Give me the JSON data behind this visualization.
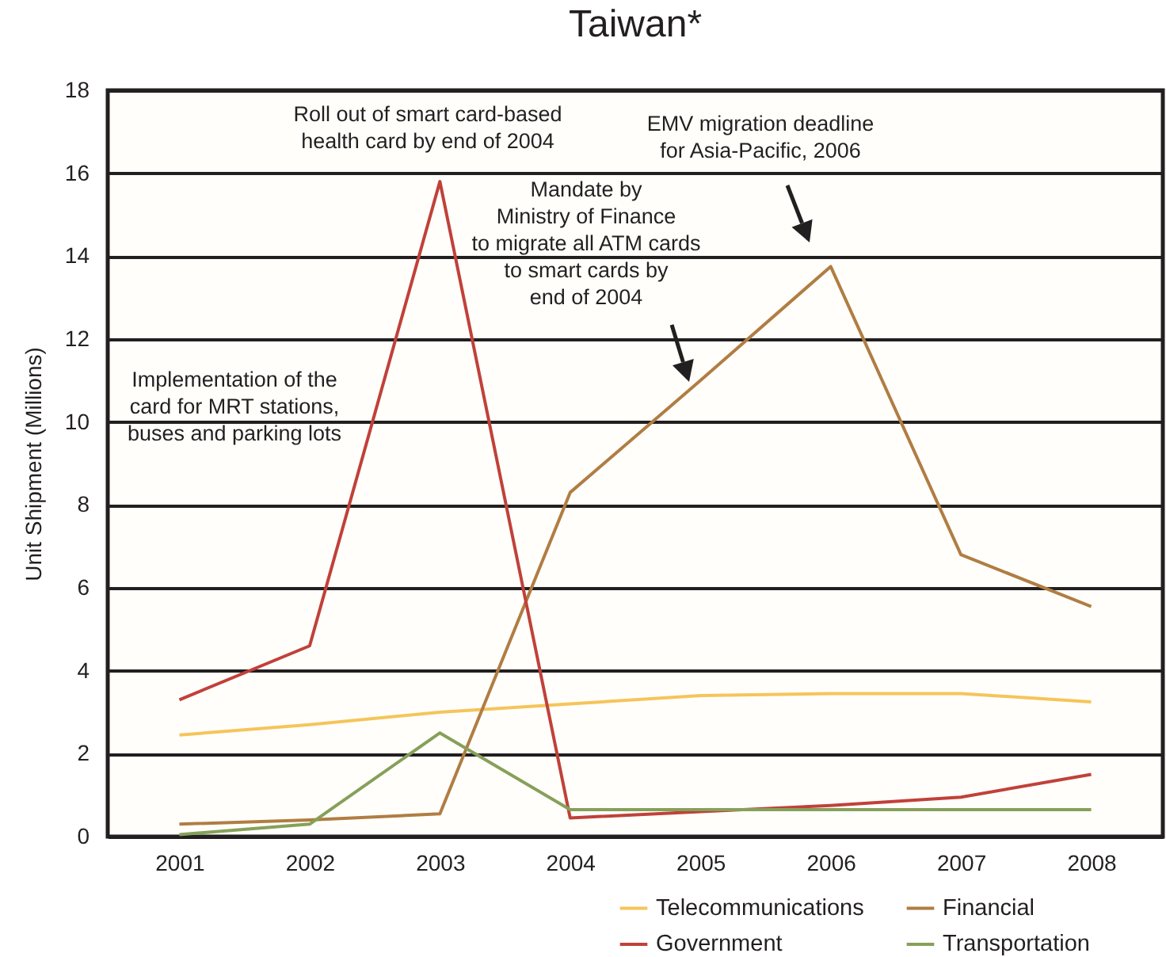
{
  "chart_data": {
    "type": "line",
    "title": "Taiwan*",
    "ylabel": "Unit Shipment (Millions)",
    "categories": [
      "2001",
      "2002",
      "2003",
      "2004",
      "2005",
      "2006",
      "2007",
      "2008"
    ],
    "series": [
      {
        "name": "Telecommunications",
        "color": "#f5c55a",
        "values": [
          2.45,
          2.7,
          3.0,
          3.2,
          3.4,
          3.45,
          3.45,
          3.25
        ]
      },
      {
        "name": "Financial",
        "color": "#b07d43",
        "values": [
          0.3,
          0.4,
          0.55,
          8.3,
          11.0,
          13.75,
          6.8,
          5.55
        ]
      },
      {
        "name": "Government",
        "color": "#c0413a",
        "values": [
          3.3,
          4.6,
          15.8,
          0.45,
          0.6,
          0.75,
          0.95,
          1.5
        ]
      },
      {
        "name": "Transportation",
        "color": "#86a05a",
        "values": [
          0.05,
          0.3,
          2.5,
          0.65,
          0.65,
          0.65,
          0.65,
          0.65
        ]
      }
    ],
    "ylim": [
      0,
      18
    ],
    "yticks": [
      0,
      2,
      4,
      6,
      8,
      10,
      12,
      14,
      16,
      18
    ],
    "grid": "y",
    "legend": "bottom right",
    "annotations": [
      "Roll out of smart card-based\nhealth card by end of 2004",
      "EMV migration deadline\nfor Asia-Pacific, 2006",
      "Mandate by\nMinistry of Finance\nto migrate all ATM cards\nto smart cards by\nend of 2004",
      "Implementation of the\ncard for MRT stations,\nbuses and parking lots"
    ]
  }
}
